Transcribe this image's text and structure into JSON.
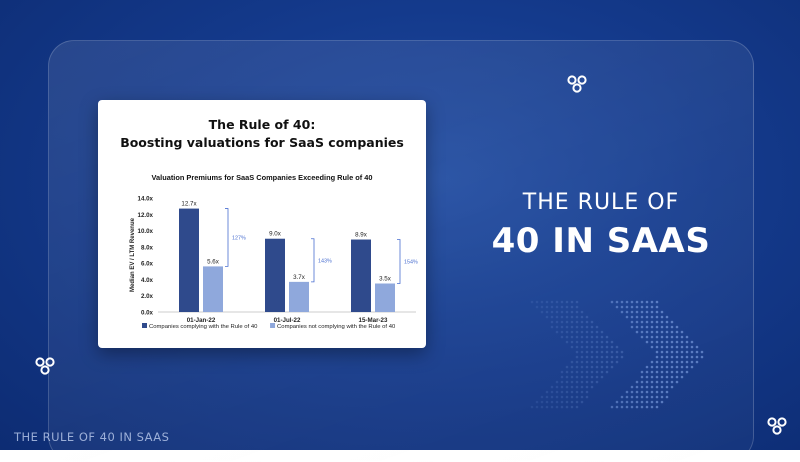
{
  "card": {
    "title_line1": "The Rule of 40:",
    "title_line2": "Boosting valuations for SaaS companies"
  },
  "headline": {
    "line1": "THE RULE OF",
    "line2": "40 IN SAAS"
  },
  "footer": {
    "text": "THE RULE OF 40 IN SAAS"
  },
  "colors": {
    "background": "#143a8c",
    "complying": "#2f4a8c",
    "not_complying": "#8fa8dc",
    "bracket": "#4a6fd0"
  },
  "icons": [
    "three-circles-logo-icon",
    "chevron-pattern-icon"
  ],
  "chart_data": {
    "type": "bar",
    "title": "Valuation Premiums for SaaS Companies Exceeding Rule of 40",
    "xlabel": "",
    "ylabel": "Median EV / LTM Revenue",
    "ylim": [
      0,
      14
    ],
    "yticks": [
      "0.0x",
      "2.0x",
      "4.0x",
      "6.0x",
      "8.0x",
      "10.0x",
      "12.0x",
      "14.0x"
    ],
    "categories": [
      "01-Jan-22",
      "01-Jul-22",
      "15-Mar-23"
    ],
    "series": [
      {
        "name": "Companies complying with the Rule of 40",
        "values": [
          12.7,
          9.0,
          8.9
        ],
        "labels": [
          "12.7x",
          "9.0x",
          "8.9x"
        ]
      },
      {
        "name": "Companies not complying with the Rule of 40",
        "values": [
          5.6,
          3.7,
          3.5
        ],
        "labels": [
          "5.6x",
          "3.7x",
          "3.5x"
        ]
      }
    ],
    "premiums": [
      "127%",
      "143%",
      "154%"
    ],
    "grid": false,
    "legend": "bottom"
  }
}
